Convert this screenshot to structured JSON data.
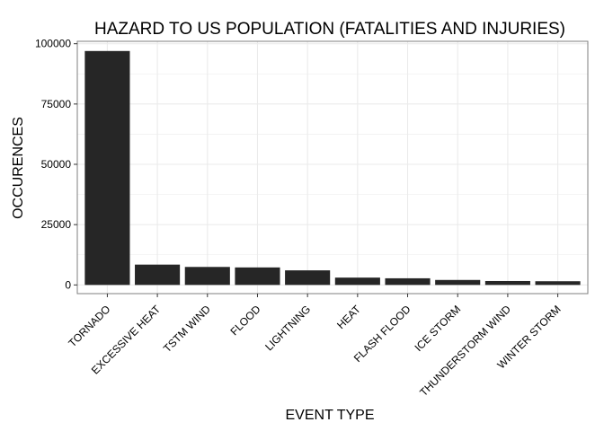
{
  "chart_data": {
    "type": "bar",
    "title": "HAZARD TO US POPULATION (FATALITIES AND INJURIES)",
    "xlabel": "EVENT TYPE",
    "ylabel": "OCCURENCES",
    "categories": [
      "TORNADO",
      "EXCESSIVE HEAT",
      "TSTM WIND",
      "FLOOD",
      "LIGHTNING",
      "HEAT",
      "FLASH FLOOD",
      "ICE STORM",
      "THUNDERSTORM WIND",
      "WINTER STORM"
    ],
    "values": [
      96979,
      8428,
      7461,
      7259,
      6046,
      3037,
      2755,
      2064,
      1621,
      1527
    ],
    "ylim": [
      -3600,
      101000
    ],
    "yticks": [
      0,
      25000,
      50000,
      75000,
      100000
    ],
    "grid": true,
    "bar_color": "#262626",
    "grid_color": "#ebebeb",
    "panel_border_color": "#7f7f7f"
  }
}
